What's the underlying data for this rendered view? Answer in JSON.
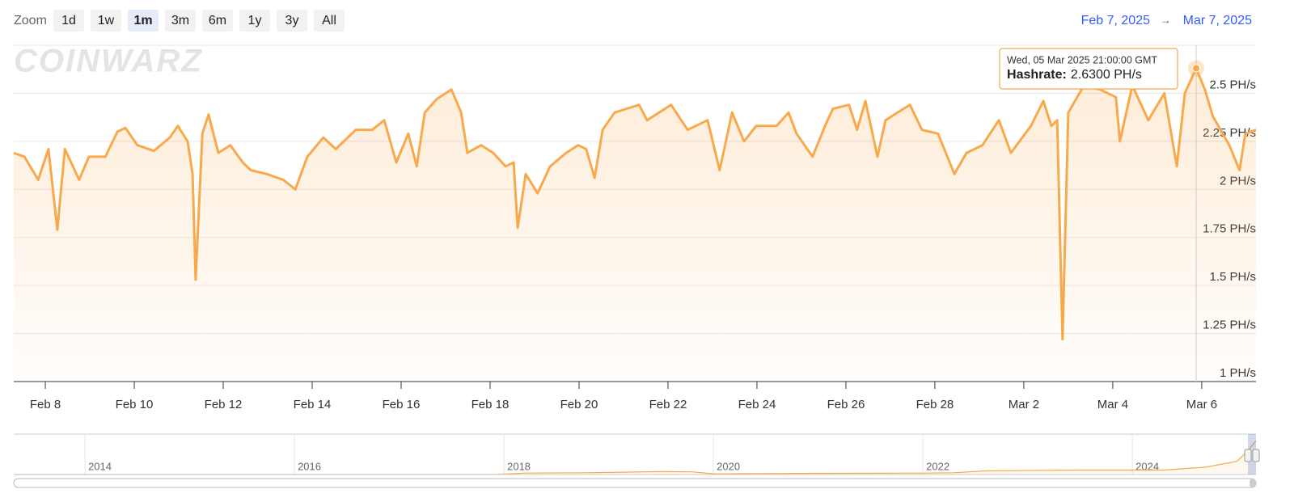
{
  "controls": {
    "zoom_label": "Zoom",
    "zoom_buttons": [
      "1d",
      "1w",
      "1m",
      "3m",
      "6m",
      "1y",
      "3y",
      "All"
    ],
    "selected": "1m",
    "range_start": "Feb 7, 2025",
    "arrow": "→",
    "range_end": "Mar 7, 2025"
  },
  "chart_data": [
    {
      "type": "line",
      "watermark": "COINWARZ",
      "color": "#f7a94c",
      "grid": true,
      "x": [
        7.29,
        7.53,
        7.84,
        8.07,
        8.27,
        8.44,
        8.76,
        8.98,
        9.35,
        9.62,
        9.8,
        10.07,
        10.44,
        10.8,
        10.98,
        11.2,
        11.31,
        11.38,
        11.53,
        11.67,
        11.89,
        12.16,
        12.44,
        12.62,
        12.98,
        13.35,
        13.62,
        13.89,
        14.25,
        14.53,
        14.98,
        15.35,
        15.62,
        15.89,
        16.16,
        16.35,
        16.53,
        16.8,
        17.13,
        17.35,
        17.49,
        17.8,
        18.07,
        18.35,
        18.53,
        18.62,
        18.8,
        19.07,
        19.35,
        19.71,
        19.98,
        20.16,
        20.35,
        20.53,
        20.8,
        21.35,
        21.53,
        22.07,
        22.44,
        22.89,
        23.16,
        23.44,
        23.71,
        23.98,
        24.44,
        24.71,
        24.89,
        25.25,
        25.53,
        25.71,
        26.07,
        26.25,
        26.44,
        26.71,
        26.89,
        27.16,
        27.44,
        27.71,
        28.07,
        28.44,
        28.71,
        29.07,
        29.44,
        29.71,
        30.16,
        30.44,
        30.62,
        30.75,
        30.87,
        31.0,
        31.35,
        31.71,
        32.07,
        32.16,
        32.44,
        32.8,
        33.16,
        33.44,
        33.62,
        33.875,
        34.07,
        34.25,
        34.62,
        34.85,
        34.98,
        35.22
      ],
      "values": [
        2.19,
        2.17,
        2.05,
        2.21,
        1.79,
        2.21,
        2.05,
        2.17,
        2.17,
        2.3,
        2.32,
        2.23,
        2.2,
        2.27,
        2.33,
        2.25,
        2.08,
        1.53,
        2.29,
        2.39,
        2.19,
        2.23,
        2.14,
        2.1,
        2.08,
        2.05,
        2.0,
        2.17,
        2.27,
        2.21,
        2.31,
        2.31,
        2.36,
        2.14,
        2.29,
        2.12,
        2.4,
        2.47,
        2.52,
        2.4,
        2.19,
        2.23,
        2.19,
        2.12,
        2.14,
        1.8,
        2.08,
        1.98,
        2.12,
        2.19,
        2.23,
        2.21,
        2.06,
        2.31,
        2.4,
        2.44,
        2.36,
        2.44,
        2.31,
        2.36,
        2.1,
        2.4,
        2.25,
        2.33,
        2.33,
        2.4,
        2.29,
        2.17,
        2.33,
        2.42,
        2.44,
        2.31,
        2.46,
        2.17,
        2.36,
        2.4,
        2.44,
        2.31,
        2.29,
        2.08,
        2.19,
        2.23,
        2.36,
        2.19,
        2.33,
        2.46,
        2.33,
        2.36,
        1.22,
        2.4,
        2.54,
        2.52,
        2.48,
        2.25,
        2.54,
        2.36,
        2.5,
        2.12,
        2.5,
        2.63,
        2.52,
        2.38,
        2.23,
        2.1,
        2.29,
        2.31
      ],
      "xlim": [
        7.29,
        35.22
      ],
      "xticks": [
        {
          "value": 8,
          "label": "Feb 8"
        },
        {
          "value": 10,
          "label": "Feb 10"
        },
        {
          "value": 12,
          "label": "Feb 12"
        },
        {
          "value": 14,
          "label": "Feb 14"
        },
        {
          "value": 16,
          "label": "Feb 16"
        },
        {
          "value": 18,
          "label": "Feb 18"
        },
        {
          "value": 20,
          "label": "Feb 20"
        },
        {
          "value": 22,
          "label": "Feb 22"
        },
        {
          "value": 24,
          "label": "Feb 24"
        },
        {
          "value": 26,
          "label": "Feb 26"
        },
        {
          "value": 28,
          "label": "Feb 28"
        },
        {
          "value": 30,
          "label": "Mar 2"
        },
        {
          "value": 32,
          "label": "Mar 4"
        },
        {
          "value": 34,
          "label": "Mar 6"
        }
      ],
      "ylim": [
        1,
        2.75
      ],
      "yticks": [
        {
          "value": 1,
          "label": "1 PH/s"
        },
        {
          "value": 1.25,
          "label": "1.25 PH/s"
        },
        {
          "value": 1.5,
          "label": "1.5 PH/s"
        },
        {
          "value": 1.75,
          "label": "1.75 PH/s"
        },
        {
          "value": 2,
          "label": "2 PH/s"
        },
        {
          "value": 2.25,
          "label": "2.25 PH/s"
        },
        {
          "value": 2.5,
          "label": "2.5 PH/s"
        }
      ],
      "tooltip": {
        "date": "Wed, 05 Mar 2025 21:00:00 GMT",
        "series_label": "Hashrate:",
        "x": 33.875,
        "value": 2.63,
        "value_label": "2.6300 PH/s"
      }
    },
    {
      "type": "area",
      "color": "#f7a94c",
      "x": [
        2013.32,
        2017.9,
        2018.2,
        2018.8,
        2019.5,
        2019.8,
        2020.0,
        2021.0,
        2022.0,
        2022.3,
        2022.6,
        2023.5,
        2024.3,
        2024.7,
        2025.0,
        2025.1,
        2025.18
      ],
      "values": [
        0,
        0,
        0.1,
        0.12,
        0.2,
        0.18,
        0.05,
        0.08,
        0.1,
        0.12,
        0.25,
        0.3,
        0.3,
        0.5,
        0.9,
        1.6,
        2.3
      ],
      "xlim": [
        2013.32,
        2025.18
      ],
      "ylim": [
        0,
        2.75
      ],
      "xticks": [
        2014,
        2016,
        2018,
        2020,
        2022,
        2024
      ]
    }
  ]
}
